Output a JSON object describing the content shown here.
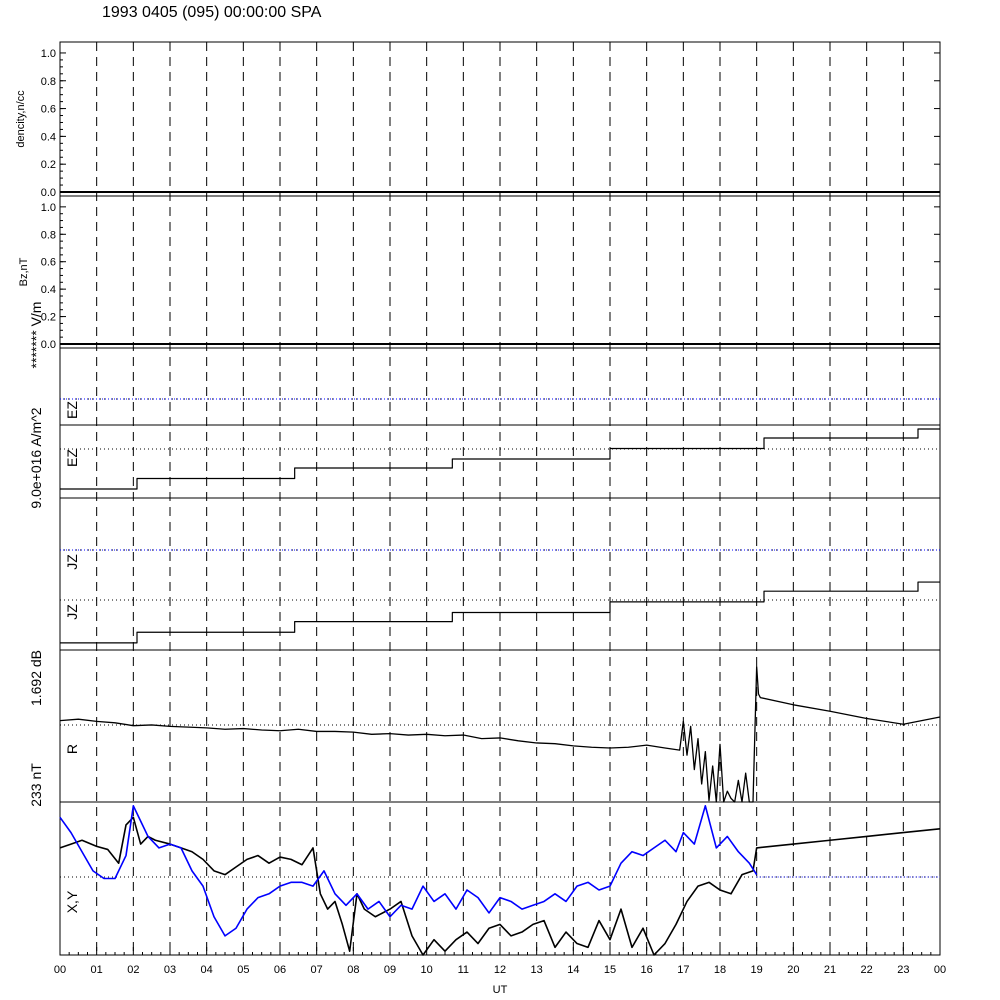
{
  "header": {
    "title": "1993 0405 (095) 00:00:00 SPA"
  },
  "chart_data": [
    {
      "type": "line",
      "panel": "density",
      "ylabel": "dencity,n/cc",
      "ylim": [
        0,
        1.05
      ],
      "yticks": [
        "0.0",
        "0.2",
        "0.4",
        "0.6",
        "0.8",
        "1.0"
      ],
      "ytick_values": [
        0,
        0.2,
        0.4,
        0.6,
        0.8,
        1.0
      ],
      "series": [
        {
          "x": [
            0,
            24
          ],
          "values": [
            0,
            0
          ]
        }
      ]
    },
    {
      "type": "line",
      "panel": "bz",
      "ylabel": "Bz,nT",
      "ylim": [
        0,
        1.05
      ],
      "yticks": [
        "0.0",
        "0.2",
        "0.4",
        "0.6",
        "0.8",
        "1.0"
      ],
      "ytick_values": [
        0,
        0.2,
        0.4,
        0.6,
        0.8,
        1.0
      ],
      "series": [
        {
          "x": [
            0,
            24
          ],
          "values": [
            0,
            0
          ]
        }
      ]
    },
    {
      "type": "line",
      "panel": "ez",
      "labels": [
        "EZ",
        "EZ"
      ],
      "scale_label": "******* V/m",
      "ylim": [
        0,
        1
      ],
      "series": [
        {
          "x": [
            0,
            2.1,
            2.1,
            6.4,
            6.4,
            10.7,
            10.7,
            15,
            15,
            19.2,
            19.2,
            23.4,
            23.4,
            24
          ],
          "values": [
            0.06,
            0.06,
            0.13,
            0.13,
            0.2,
            0.2,
            0.26,
            0.26,
            0.33,
            0.33,
            0.4,
            0.4,
            0.46,
            0.46
          ]
        }
      ]
    },
    {
      "type": "line",
      "panel": "jz",
      "labels": [
        "JZ",
        "JZ"
      ],
      "scale_label": "9.0e+016 A/m^2",
      "ylim": [
        0,
        1
      ],
      "series": [
        {
          "x": [
            0,
            2.1,
            2.1,
            6.4,
            6.4,
            10.7,
            10.7,
            15,
            15,
            19.2,
            19.2,
            23.4,
            23.4,
            24
          ],
          "values": [
            0.06,
            0.06,
            0.13,
            0.13,
            0.2,
            0.2,
            0.26,
            0.26,
            0.33,
            0.33,
            0.4,
            0.4,
            0.46,
            0.46
          ]
        }
      ]
    },
    {
      "type": "line",
      "panel": "r",
      "labels": [
        "R"
      ],
      "scale_label": "1.692 dB",
      "ylim": [
        -1,
        1
      ],
      "series": [
        {
          "x": [
            0,
            0.5,
            1,
            1.5,
            2,
            2.5,
            3,
            3.5,
            4,
            4.5,
            5,
            5.5,
            6,
            6.5,
            7,
            7.5,
            8,
            8.5,
            9,
            9.5,
            10,
            10.5,
            11,
            11.5,
            12,
            12.5,
            13,
            13.5,
            14,
            14.5,
            15,
            15.5,
            16,
            16.5,
            16.9,
            17.0,
            17.1,
            17.2,
            17.3,
            17.4,
            17.5,
            17.6,
            17.7,
            17.8,
            17.9,
            18.0,
            18.1,
            18.2,
            18.3,
            18.4,
            18.5,
            18.6,
            18.7,
            18.8,
            18.9,
            19.0,
            19.05,
            19.1,
            20,
            21,
            22,
            23,
            24
          ],
          "values": [
            0.13,
            0.15,
            0.12,
            0.1,
            0.06,
            0.07,
            0.05,
            0.04,
            0.03,
            0.01,
            0.02,
            0.0,
            -0.01,
            0.01,
            -0.02,
            -0.02,
            -0.03,
            -0.06,
            -0.05,
            -0.07,
            -0.06,
            -0.08,
            -0.07,
            -0.12,
            -0.11,
            -0.15,
            -0.18,
            -0.19,
            -0.22,
            -0.24,
            -0.25,
            -0.24,
            -0.21,
            -0.25,
            -0.28,
            0.12,
            -0.35,
            0.05,
            -0.55,
            -0.12,
            -0.75,
            -0.3,
            -0.98,
            -0.5,
            -1.0,
            -0.2,
            -1.0,
            -0.85,
            -0.95,
            -1.0,
            -0.7,
            -1.0,
            -0.6,
            -1.0,
            -1.0,
            0.88,
            0.5,
            0.45,
            0.35,
            0.26,
            0.16,
            0.08,
            0.18
          ]
        }
      ]
    },
    {
      "type": "line",
      "panel": "xy",
      "labels": [
        "X,Y"
      ],
      "scale_label": "233 nT",
      "xlabel": "UT",
      "xticks": [
        "00",
        "01",
        "02",
        "03",
        "04",
        "05",
        "06",
        "07",
        "08",
        "09",
        "10",
        "11",
        "12",
        "13",
        "14",
        "15",
        "16",
        "17",
        "18",
        "19",
        "20",
        "21",
        "22",
        "23",
        "00"
      ],
      "xlim": [
        0,
        24
      ],
      "ylim": [
        -1,
        1
      ],
      "series": [
        {
          "color": "#000000",
          "x": [
            0,
            0.3,
            0.6,
            1.0,
            1.3,
            1.6,
            1.8,
            2.0,
            2.2,
            2.4,
            2.6,
            3.0,
            3.3,
            3.6,
            3.9,
            4.2,
            4.5,
            4.8,
            5.1,
            5.4,
            5.7,
            6.0,
            6.3,
            6.6,
            6.9,
            7.1,
            7.3,
            7.5,
            7.7,
            7.9,
            8.1,
            8.3,
            8.6,
            9.0,
            9.3,
            9.6,
            9.9,
            10.2,
            10.5,
            10.8,
            11.1,
            11.4,
            11.7,
            12.0,
            12.3,
            12.6,
            12.9,
            13.2,
            13.5,
            13.8,
            14.1,
            14.4,
            14.7,
            15.0,
            15.3,
            15.6,
            15.9,
            16.2,
            16.5,
            16.8,
            17.1,
            17.4,
            17.7,
            18.0,
            18.3,
            18.6,
            18.9,
            19.0,
            20,
            21,
            22,
            23,
            24
          ],
          "values": [
            0.4,
            0.45,
            0.5,
            0.42,
            0.38,
            0.2,
            0.7,
            0.8,
            0.45,
            0.55,
            0.5,
            0.45,
            0.4,
            0.35,
            0.25,
            0.1,
            0.05,
            0.15,
            0.25,
            0.3,
            0.2,
            0.28,
            0.25,
            0.18,
            0.4,
            -0.2,
            -0.4,
            -0.3,
            -0.6,
            -0.95,
            -0.2,
            -0.4,
            -0.5,
            -0.4,
            -0.3,
            -0.75,
            -1.0,
            -0.8,
            -0.95,
            -0.8,
            -0.7,
            -0.85,
            -0.65,
            -0.6,
            -0.75,
            -0.7,
            -0.6,
            -0.55,
            -0.9,
            -0.7,
            -0.85,
            -0.9,
            -0.55,
            -0.8,
            -0.4,
            -0.9,
            -0.65,
            -1.0,
            -0.85,
            -0.6,
            -0.3,
            -0.1,
            -0.05,
            -0.15,
            -0.2,
            0.05,
            0.1,
            0.4,
            0.45,
            0.5,
            0.55,
            0.6,
            0.65
          ]
        },
        {
          "color": "#0000ff",
          "x": [
            0,
            0.3,
            0.6,
            0.9,
            1.2,
            1.5,
            1.8,
            2.0,
            2.2,
            2.4,
            2.7,
            3.0,
            3.3,
            3.6,
            3.9,
            4.2,
            4.5,
            4.8,
            5.1,
            5.4,
            5.7,
            6.0,
            6.3,
            6.6,
            6.9,
            7.2,
            7.5,
            7.8,
            8.1,
            8.4,
            8.7,
            9.0,
            9.3,
            9.6,
            9.9,
            10.2,
            10.5,
            10.8,
            11.1,
            11.4,
            11.7,
            12.0,
            12.3,
            12.6,
            12.9,
            13.2,
            13.5,
            13.8,
            14.1,
            14.4,
            14.7,
            15.0,
            15.3,
            15.6,
            15.9,
            16.2,
            16.5,
            16.8,
            17.0,
            17.3,
            17.6,
            17.9,
            18.2,
            18.5,
            18.8,
            19.0
          ],
          "values": [
            0.8,
            0.6,
            0.35,
            0.1,
            0.0,
            0.0,
            0.3,
            0.95,
            0.75,
            0.55,
            0.4,
            0.45,
            0.4,
            0.1,
            -0.1,
            -0.5,
            -0.75,
            -0.65,
            -0.4,
            -0.25,
            -0.2,
            -0.1,
            -0.05,
            -0.05,
            -0.1,
            0.1,
            -0.2,
            -0.35,
            -0.2,
            -0.4,
            -0.3,
            -0.5,
            -0.35,
            -0.4,
            -0.1,
            -0.3,
            -0.2,
            -0.4,
            -0.15,
            -0.25,
            -0.45,
            -0.25,
            -0.3,
            -0.4,
            -0.35,
            -0.3,
            -0.2,
            -0.3,
            -0.1,
            -0.05,
            -0.15,
            -0.1,
            0.2,
            0.35,
            0.3,
            0.4,
            0.5,
            0.35,
            0.6,
            0.45,
            0.95,
            0.4,
            0.55,
            0.35,
            0.2,
            0.05
          ]
        }
      ]
    }
  ]
}
